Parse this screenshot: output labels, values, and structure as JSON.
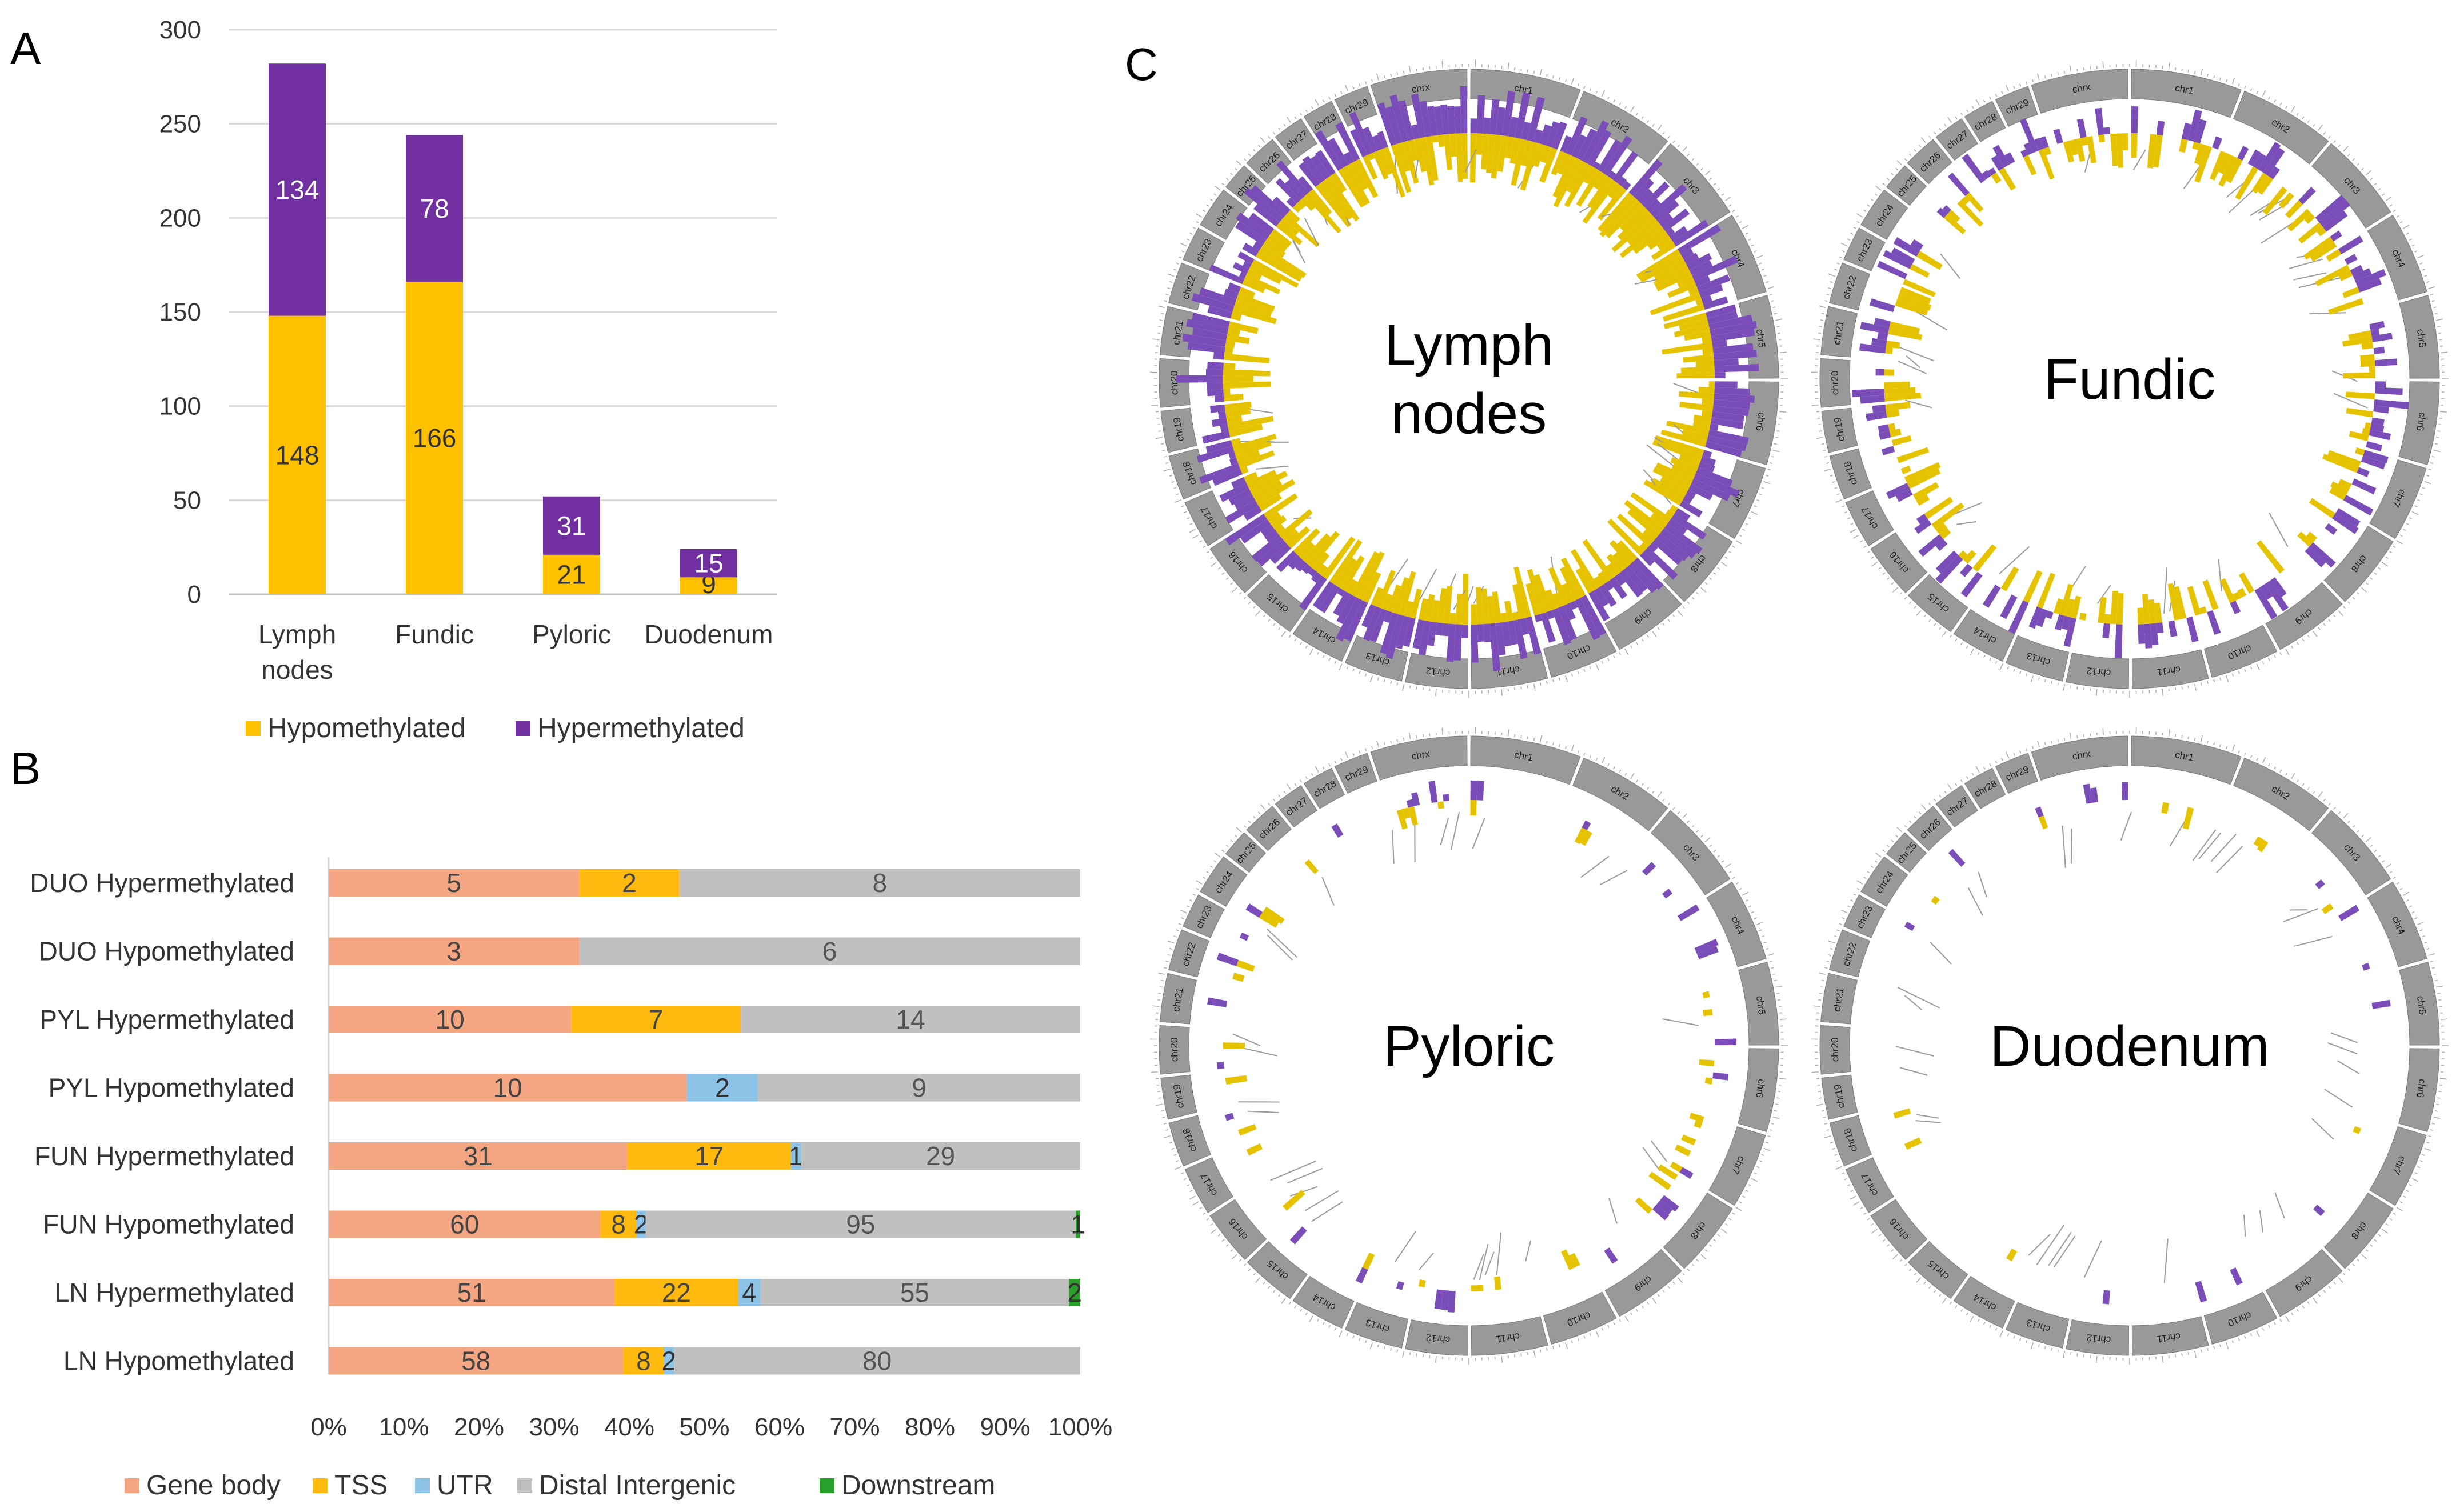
{
  "panel_labels": [
    "A",
    "B",
    "C"
  ],
  "colors": {
    "hypo": "#FFC000",
    "hyper": "#7030A0",
    "gene_body": "#F4A582",
    "tss": "#FFB90F",
    "utr": "#8DC3E6",
    "distal": "#C0C0C0",
    "downstream": "#2CA02C",
    "circos_hypo": "#E6C300",
    "circos_hyper": "#7A4DB8",
    "ideogram": "#999999"
  },
  "chart_data": [
    {
      "type": "bar",
      "stacked": true,
      "panel": "A",
      "categories": [
        "Lymph nodes",
        "Fundic",
        "Pyloric",
        "Duodenum"
      ],
      "series": [
        {
          "name": "Hypomethylated",
          "values": [
            148,
            166,
            21,
            9
          ]
        },
        {
          "name": "Hypermethylated",
          "values": [
            134,
            78,
            31,
            15
          ]
        }
      ],
      "yticks": [
        "0",
        "50",
        "100",
        "150",
        "200",
        "250",
        "300"
      ],
      "ylim": [
        0,
        300
      ],
      "grid": true,
      "legend": "bottom"
    },
    {
      "type": "bar",
      "orientation": "horizontal",
      "stacked": "percent",
      "panel": "B",
      "categories": [
        "DUO Hypermethylated",
        "DUO Hypomethylated",
        "PYL Hypermethylated",
        "PYL Hypomethylated",
        "FUN Hypermethylated",
        "FUN Hypomethylated",
        "LN Hypermethylated",
        "LN Hypomethylated"
      ],
      "series": [
        {
          "name": "Gene body",
          "values": [
            5,
            3,
            10,
            10,
            31,
            60,
            51,
            58
          ],
          "labels": [
            "5",
            "3",
            "10",
            "10",
            "31",
            "60",
            "51",
            "58"
          ]
        },
        {
          "name": "TSS",
          "values": [
            2,
            0,
            7,
            0,
            17,
            8,
            22,
            8
          ],
          "labels": [
            "2",
            "",
            "7",
            "",
            "17",
            "8",
            "22",
            "8"
          ]
        },
        {
          "name": "UTR",
          "values": [
            0,
            0,
            0,
            2,
            1,
            2,
            4,
            2
          ],
          "labels": [
            "",
            "",
            "",
            "2",
            "1",
            "2",
            "4",
            "2"
          ]
        },
        {
          "name": "Distal Intergenic",
          "values": [
            8,
            6,
            14,
            9,
            29,
            95,
            55,
            80
          ],
          "labels": [
            "8",
            "6",
            "14",
            "9",
            "29",
            "95",
            "55",
            "80"
          ]
        },
        {
          "name": "Downstream",
          "values": [
            0,
            0,
            0,
            0,
            0,
            1,
            2,
            0
          ],
          "labels": [
            "",
            "",
            "",
            "",
            "",
            "1",
            "2",
            ""
          ]
        }
      ],
      "xticks": [
        "0%",
        "10%",
        "20%",
        "30%",
        "40%",
        "50%",
        "60%",
        "70%",
        "80%",
        "90%",
        "100%"
      ],
      "xlim": [
        0,
        100
      ],
      "legend": "bottom"
    },
    {
      "type": "circos",
      "panel": "C",
      "chromosomes": [
        "chr1",
        "chr2",
        "chr3",
        "chr4",
        "chr5",
        "chr6",
        "chr7",
        "chr8",
        "chr9",
        "chr10",
        "chr11",
        "chr12",
        "chr13",
        "chr14",
        "chr15",
        "chr16",
        "chr17",
        "chr18",
        "chr19",
        "chr20",
        "chr21",
        "chr22",
        "chr23",
        "chr24",
        "chr25",
        "chr26",
        "chr27",
        "chr28",
        "chr29",
        "chrx"
      ],
      "plots": [
        {
          "label": [
            "Lymph",
            "nodes"
          ],
          "density": 1.0
        },
        {
          "label": [
            "Fundic"
          ],
          "density": 0.55
        },
        {
          "label": [
            "Pyloric"
          ],
          "density": 0.12
        },
        {
          "label": [
            "Duodenum"
          ],
          "density": 0.05
        }
      ]
    }
  ]
}
